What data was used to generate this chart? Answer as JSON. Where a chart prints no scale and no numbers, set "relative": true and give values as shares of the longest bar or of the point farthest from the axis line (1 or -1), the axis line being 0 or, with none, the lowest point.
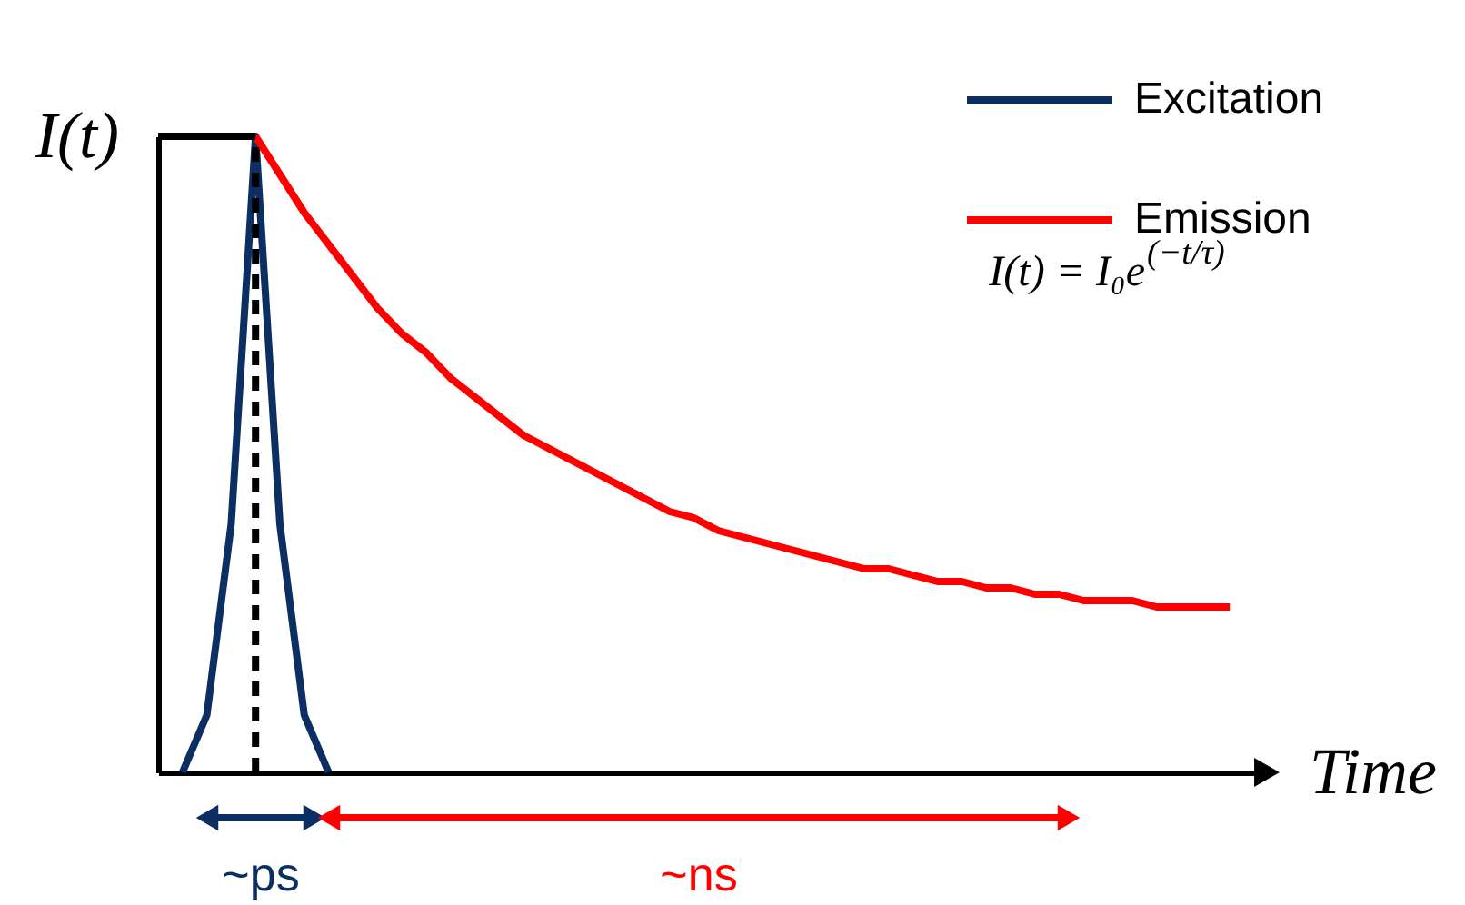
{
  "chart_data": {
    "type": "line",
    "relative": true,
    "xlabel": "Time",
    "ylabel": "I(t)",
    "tick_labels": false,
    "grid": false,
    "legend": "top right",
    "line_style": "solid",
    "marker": "none",
    "categories": [
      null,
      null,
      null,
      null,
      null,
      null,
      null,
      null,
      null,
      null,
      null,
      null,
      null,
      null,
      null,
      null,
      null,
      null,
      null,
      null,
      null,
      null,
      null,
      null,
      null,
      null,
      null,
      null,
      null,
      null,
      null,
      null,
      null,
      null,
      null,
      null,
      null,
      null,
      null,
      null,
      null,
      null,
      null,
      null,
      null,
      null
    ],
    "series": [
      {
        "name": "Excitation",
        "color": "#0b2e63",
        "values": [
          null,
          0,
          0.09,
          0.39,
          1,
          0.39,
          0.09,
          0,
          null,
          null,
          null,
          null,
          null,
          null,
          null,
          null,
          null,
          null,
          null,
          null,
          null,
          null,
          null,
          null,
          null,
          null,
          null,
          null,
          null,
          null,
          null,
          null,
          null,
          null,
          null,
          null,
          null,
          null,
          null,
          null,
          null,
          null,
          null,
          null,
          null,
          null
        ]
      },
      {
        "name": "Emission",
        "color": "#ff0000",
        "values": [
          null,
          null,
          null,
          null,
          1,
          0.94,
          0.88,
          0.83,
          0.78,
          0.73,
          0.69,
          0.66,
          0.62,
          0.59,
          0.56,
          0.53,
          0.51,
          0.49,
          0.47,
          0.45,
          0.43,
          0.41,
          0.4,
          0.38,
          0.37,
          0.36,
          0.35,
          0.34,
          0.33,
          0.32,
          0.32,
          0.31,
          0.3,
          0.3,
          0.29,
          0.29,
          0.28,
          0.28,
          0.27,
          0.27,
          0.27,
          0.26,
          0.26,
          0.26,
          0.26,
          null
        ]
      },
      {
        "color": "#000000",
        "values": [
          1,
          1,
          1,
          1,
          1,
          null,
          null,
          null,
          null,
          null,
          null,
          null,
          null,
          null,
          null,
          null,
          null,
          null,
          null,
          null,
          null,
          null,
          null,
          null,
          null,
          null,
          null,
          null,
          null,
          null,
          null,
          null,
          null,
          null,
          null,
          null,
          null,
          null,
          null,
          null,
          null,
          null,
          null,
          null,
          null,
          null
        ]
      }
    ],
    "ref_lines": [
      {
        "axis": "x",
        "color": "#000000",
        "line_style": "dashed"
      }
    ],
    "annotations": [
      "I(t) = I₀e$^{(−t/τ)}$",
      "~ps",
      "~ns"
    ]
  }
}
